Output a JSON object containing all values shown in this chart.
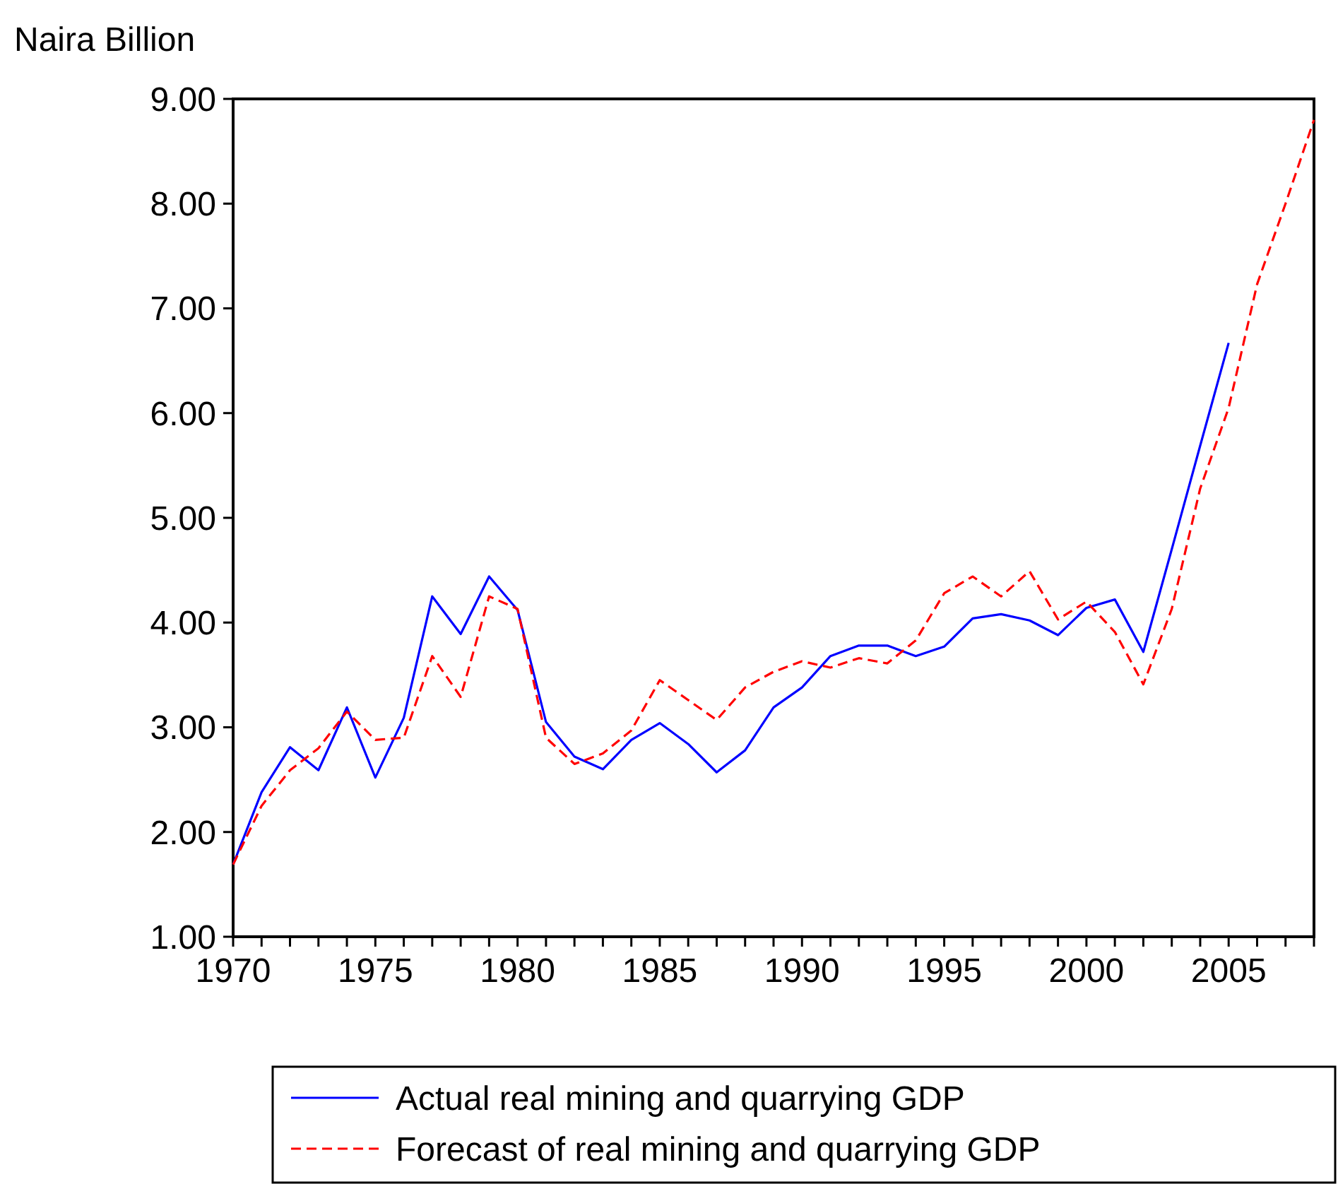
{
  "chart_data": {
    "type": "line",
    "ylabel": "Naira Billion",
    "x": [
      1970,
      1971,
      1972,
      1973,
      1974,
      1975,
      1976,
      1977,
      1978,
      1979,
      1980,
      1981,
      1982,
      1983,
      1984,
      1985,
      1986,
      1987,
      1988,
      1989,
      1990,
      1991,
      1992,
      1993,
      1994,
      1995,
      1996,
      1997,
      1998,
      1999,
      2000,
      2001,
      2002,
      2003,
      2004,
      2005,
      2006,
      2007,
      2008
    ],
    "series": [
      {
        "name": "Actual real mining and quarrying GDP",
        "color": "#0000ff",
        "line_style": "solid",
        "values": [
          1.69,
          2.38,
          2.81,
          2.59,
          3.19,
          2.52,
          3.09,
          4.25,
          3.89,
          4.44,
          4.12,
          3.05,
          2.72,
          2.6,
          2.88,
          3.04,
          2.84,
          2.57,
          2.78,
          3.19,
          3.38,
          3.68,
          3.78,
          3.78,
          3.68,
          3.77,
          4.04,
          4.08,
          4.02,
          3.88,
          4.14,
          4.22,
          3.72,
          4.7,
          5.69,
          6.67,
          null,
          null,
          null
        ]
      },
      {
        "name": "Forecast of real mining and quarrying GDP",
        "color": "#ff0000",
        "line_style": "dashed",
        "values": [
          1.69,
          2.25,
          2.59,
          2.8,
          3.15,
          2.88,
          2.9,
          3.68,
          3.29,
          4.25,
          4.13,
          2.9,
          2.65,
          2.75,
          2.97,
          3.45,
          3.26,
          3.07,
          3.38,
          3.53,
          3.63,
          3.57,
          3.66,
          3.61,
          3.83,
          4.28,
          4.44,
          4.25,
          4.49,
          4.03,
          4.2,
          3.91,
          3.41,
          4.13,
          5.28,
          6.05,
          7.23,
          8.0,
          8.8
        ]
      }
    ],
    "xlim": [
      1970,
      2008
    ],
    "xticks": [
      1970,
      {
        "value": 1971,
        "label": null
      },
      {
        "value": 1972,
        "label": null
      },
      {
        "value": 1973,
        "label": null
      },
      {
        "value": 1974,
        "label": null
      },
      1975,
      {
        "value": 1976,
        "label": null
      },
      {
        "value": 1977,
        "label": null
      },
      {
        "value": 1978,
        "label": null
      },
      {
        "value": 1979,
        "label": null
      },
      1980,
      {
        "value": 1981,
        "label": null
      },
      {
        "value": 1982,
        "label": null
      },
      {
        "value": 1983,
        "label": null
      },
      {
        "value": 1984,
        "label": null
      },
      1985,
      {
        "value": 1986,
        "label": null
      },
      {
        "value": 1987,
        "label": null
      },
      {
        "value": 1988,
        "label": null
      },
      {
        "value": 1989,
        "label": null
      },
      1990,
      {
        "value": 1991,
        "label": null
      },
      {
        "value": 1992,
        "label": null
      },
      {
        "value": 1993,
        "label": null
      },
      {
        "value": 1994,
        "label": null
      },
      1995,
      {
        "value": 1996,
        "label": null
      },
      {
        "value": 1997,
        "label": null
      },
      {
        "value": 1998,
        "label": null
      },
      {
        "value": 1999,
        "label": null
      },
      2000,
      {
        "value": 2001,
        "label": null
      },
      {
        "value": 2002,
        "label": null
      },
      {
        "value": 2003,
        "label": null
      },
      {
        "value": 2004,
        "label": null
      },
      2005,
      {
        "value": 2006,
        "label": null
      },
      {
        "value": 2007,
        "label": null
      },
      {
        "value": 2008,
        "label": null
      }
    ],
    "ylim": [
      1,
      9
    ],
    "yticks": [
      {
        "value": 1,
        "label": "1.00"
      },
      {
        "value": 2,
        "label": "2.00"
      },
      {
        "value": 3,
        "label": "3.00"
      },
      {
        "value": 4,
        "label": "4.00"
      },
      {
        "value": 5,
        "label": "5.00"
      },
      {
        "value": 6,
        "label": "6.00"
      },
      {
        "value": 7,
        "label": "7.00"
      },
      {
        "value": 8,
        "label": "8.00"
      },
      {
        "value": 9,
        "label": "9.00"
      }
    ],
    "grid": false,
    "legend": "bottom",
    "marker": "none"
  }
}
